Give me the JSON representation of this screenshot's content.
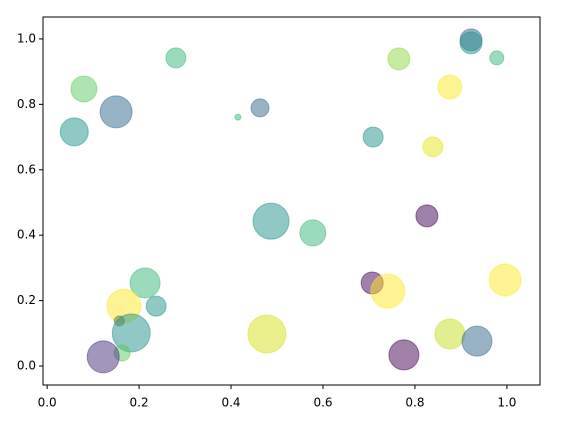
{
  "chart_data": {
    "type": "scatter",
    "x": [
      0.922,
      0.922,
      0.978,
      0.765,
      0.28,
      0.08,
      0.15,
      0.059,
      0.415,
      0.463,
      0.876,
      0.709,
      0.839,
      0.826,
      0.487,
      0.578,
      0.213,
      0.707,
      0.741,
      0.996,
      0.167,
      0.237,
      0.157,
      0.183,
      0.478,
      0.876,
      0.935,
      0.163,
      0.122,
      0.776
    ],
    "y": [
      0.997,
      0.988,
      0.942,
      0.939,
      0.942,
      0.847,
      0.777,
      0.716,
      0.761,
      0.789,
      0.853,
      0.7,
      0.67,
      0.459,
      0.443,
      0.407,
      0.254,
      0.254,
      0.229,
      0.263,
      0.183,
      0.183,
      0.138,
      0.101,
      0.098,
      0.098,
      0.076,
      0.04,
      0.028,
      0.034
    ],
    "sizes": [
      121,
      121,
      49,
      121,
      100,
      169,
      256,
      196,
      9,
      81,
      144,
      100,
      100,
      121,
      324,
      169,
      225,
      121,
      289,
      256,
      289,
      100,
      25,
      361,
      361,
      225,
      225,
      64,
      256,
      225
    ],
    "colors": [
      "#31688e",
      "#21918c",
      "#35b779",
      "#8fd744",
      "#35b779",
      "#5ec962",
      "#31688e",
      "#21918c",
      "#35b779",
      "#31688e",
      "#fde725",
      "#21918c",
      "#e5e419",
      "#440154",
      "#21918c",
      "#35b779",
      "#35b779",
      "#440154",
      "#fde725",
      "#fde725",
      "#fde725",
      "#21918c",
      "#5e7a3a",
      "#21918c",
      "#d8e219",
      "#c8e020",
      "#31688e",
      "#5ec962",
      "#472d7b",
      "#440154"
    ],
    "alpha": 0.5,
    "xlim": [
      -0.009,
      1.072
    ],
    "ylim": [
      -0.058,
      1.067
    ],
    "xticks": [
      {
        "value": 0,
        "label": "0.0"
      },
      0.2,
      0.4,
      0.6,
      0.8,
      {
        "value": 1,
        "label": "1.0"
      }
    ],
    "yticks": [
      {
        "value": 0,
        "label": "0.0"
      },
      0.2,
      0.4,
      0.6,
      0.8,
      {
        "value": 1,
        "label": "1.0"
      }
    ]
  }
}
